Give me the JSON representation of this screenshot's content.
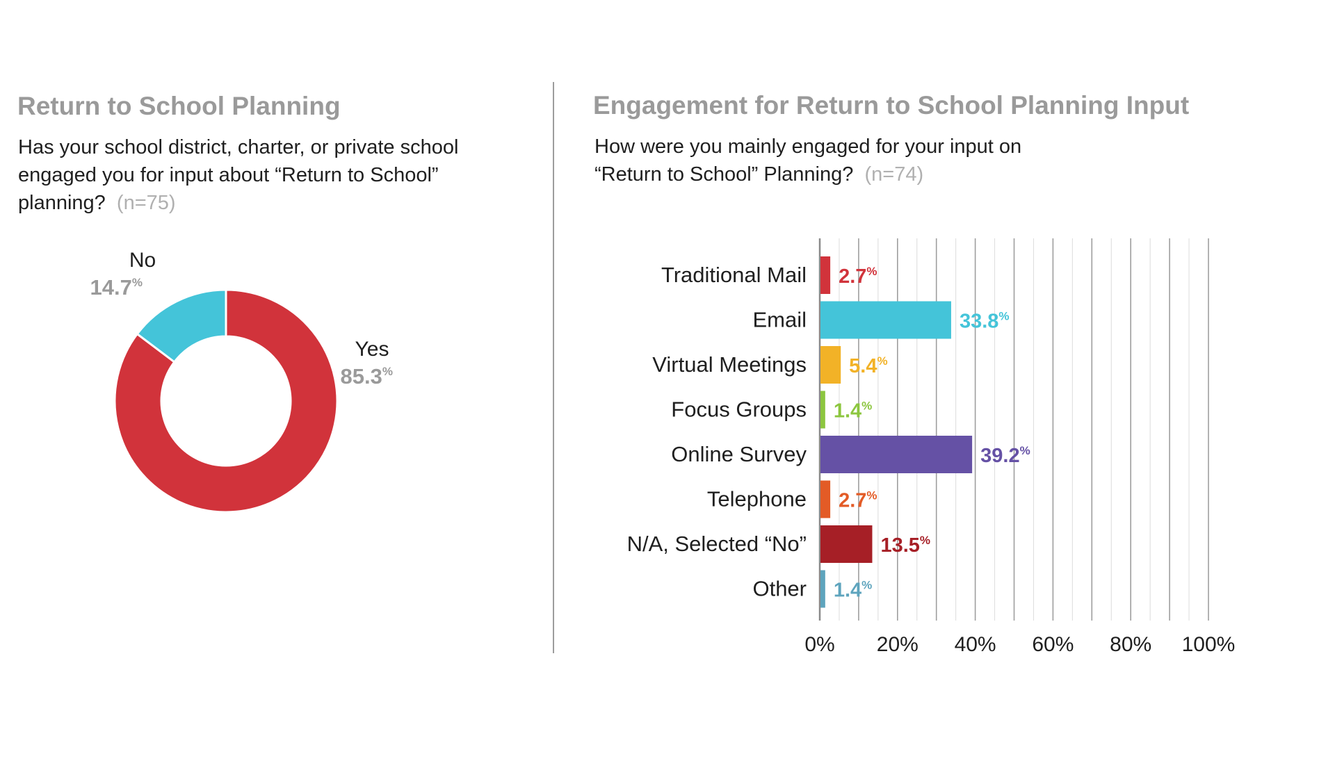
{
  "chart_data": [
    {
      "type": "pie",
      "title": "Return to School Planning",
      "question": "Has your school district, charter, or private school engaged you for input about “Return to School” planning?",
      "n_label": "(n=75)",
      "slices": [
        {
          "label": "Yes",
          "value": 85.3,
          "value_text": "85.3",
          "color": "#d1333b"
        },
        {
          "label": "No",
          "value": 14.7,
          "value_text": "14.7",
          "color": "#44c4d9"
        }
      ],
      "percent_symbol": "%"
    },
    {
      "type": "bar",
      "orientation": "horizontal",
      "title": "Engagement for Return to School Planning Input",
      "question": "How were you mainly engaged for your input on “Return to School” Planning?",
      "n_label": "(n=74)",
      "categories": [
        "Traditional Mail",
        "Email",
        "Virtual Meetings",
        "Focus Groups",
        "Online Survey",
        "Telephone",
        "N/A, Selected “No”",
        "Other"
      ],
      "values": [
        2.7,
        33.8,
        5.4,
        1.4,
        39.2,
        2.7,
        13.5,
        1.4
      ],
      "value_texts": [
        "2.7",
        "33.8",
        "5.4",
        "1.4",
        "39.2",
        "2.7",
        "13.5",
        "1.4"
      ],
      "colors": [
        "#d1333b",
        "#44c4d9",
        "#f2b227",
        "#8cc63f",
        "#6551a5",
        "#e35b26",
        "#a61f26",
        "#5ea4bd"
      ],
      "percent_symbol": "%",
      "xlim": [
        0,
        100
      ],
      "xticks": [
        "0%",
        "20%",
        "40%",
        "60%",
        "80%",
        "100%"
      ],
      "grid": true
    }
  ]
}
